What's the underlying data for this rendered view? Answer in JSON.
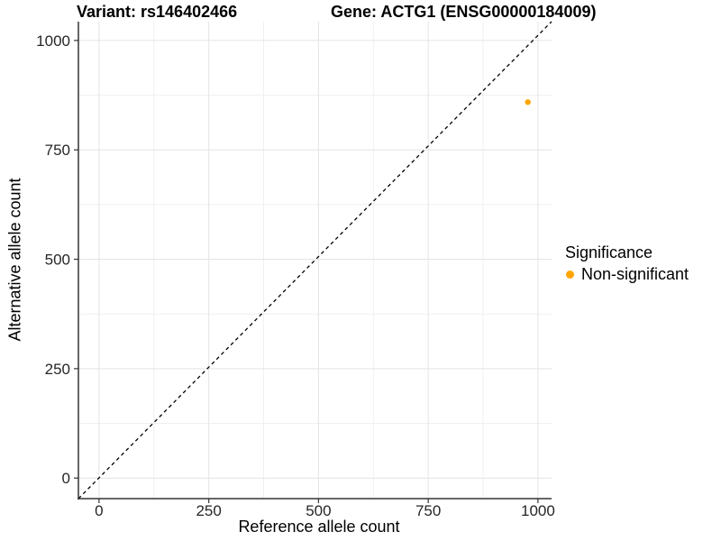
{
  "header": {
    "title_left": "Variant: rs146402466",
    "title_right": "Gene: ACTG1 (ENSG00000184009)"
  },
  "axes": {
    "x_title": "Reference allele count",
    "y_title": "Alternative allele count"
  },
  "legend": {
    "title": "Significance",
    "items": [
      {
        "label": "Non-significant",
        "color": "#FFA500",
        "marker": "circle"
      }
    ]
  },
  "chart_data": {
    "type": "scatter",
    "title": "Variant: rs146402466   Gene: ACTG1 (ENSG00000184009)",
    "xlabel": "Reference allele count",
    "ylabel": "Alternative allele count",
    "x_ticks": [
      0,
      250,
      500,
      750,
      1000
    ],
    "y_ticks": [
      0,
      250,
      500,
      750,
      1000
    ],
    "x_minor_gridlines": [
      125,
      375,
      625,
      875
    ],
    "y_minor_gridlines": [
      125,
      375,
      625,
      875
    ],
    "xlim": [
      -47,
      1031
    ],
    "ylim": [
      -47,
      1043
    ],
    "grid": "major+minor",
    "legend_position": "right",
    "series": [
      {
        "name": "Non-significant",
        "color": "#FFA500",
        "points": [
          {
            "x": 977,
            "y": 859
          }
        ]
      }
    ],
    "reference_line": {
      "type": "identity-diagonal",
      "style": "dashed",
      "color": "#000000"
    },
    "style": {
      "grid_major_color": "#e4e4e4",
      "grid_minor_color": "#f0f0f0",
      "axis_line_color": "#333333",
      "tick_color": "#333333",
      "tick_label_color": "#262626",
      "tick_label_size": 17,
      "point_radius": 3.2
    }
  }
}
